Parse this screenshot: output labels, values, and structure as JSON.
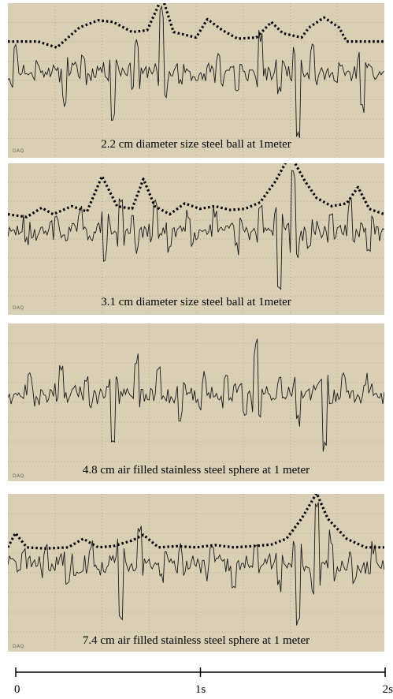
{
  "panels": [
    {
      "caption": "2.2 cm diameter size steel ball at 1meter",
      "daq_label": "DAQ",
      "has_envelope": true,
      "seed": 11,
      "spikes": [
        [
          0.02,
          0.38
        ],
        [
          0.08,
          0.22
        ],
        [
          0.15,
          -0.45
        ],
        [
          0.2,
          0.3
        ],
        [
          0.28,
          -0.75
        ],
        [
          0.34,
          0.55
        ],
        [
          0.41,
          1.1
        ],
        [
          0.46,
          -0.3
        ],
        [
          0.52,
          -0.2
        ],
        [
          0.56,
          0.35
        ],
        [
          0.61,
          -0.35
        ],
        [
          0.67,
          0.6
        ],
        [
          0.72,
          -0.3
        ],
        [
          0.77,
          -1.0
        ],
        [
          0.81,
          0.4
        ],
        [
          0.87,
          -0.25
        ],
        [
          0.94,
          -0.75
        ]
      ],
      "envelope": [
        [
          0.0,
          0.55
        ],
        [
          0.08,
          0.55
        ],
        [
          0.13,
          0.44
        ],
        [
          0.19,
          0.8
        ],
        [
          0.24,
          0.93
        ],
        [
          0.28,
          0.9
        ],
        [
          0.33,
          0.72
        ],
        [
          0.37,
          0.75
        ],
        [
          0.41,
          1.35
        ],
        [
          0.44,
          0.72
        ],
        [
          0.5,
          0.62
        ],
        [
          0.53,
          0.95
        ],
        [
          0.57,
          0.75
        ],
        [
          0.61,
          0.6
        ],
        [
          0.66,
          0.62
        ],
        [
          0.7,
          0.9
        ],
        [
          0.73,
          0.7
        ],
        [
          0.78,
          0.62
        ],
        [
          0.8,
          0.8
        ],
        [
          0.84,
          0.98
        ],
        [
          0.88,
          0.8
        ],
        [
          0.9,
          0.55
        ],
        [
          1.0,
          0.55
        ]
      ]
    },
    {
      "caption": "3.1 cm diameter size steel ball at 1meter",
      "daq_label": "DAQ",
      "has_envelope": true,
      "seed": 29,
      "spikes": [
        [
          0.05,
          -0.3
        ],
        [
          0.13,
          0.25
        ],
        [
          0.19,
          0.3
        ],
        [
          0.26,
          -0.5
        ],
        [
          0.3,
          0.55
        ],
        [
          0.34,
          -0.3
        ],
        [
          0.39,
          0.4
        ],
        [
          0.43,
          -0.35
        ],
        [
          0.48,
          0.35
        ],
        [
          0.55,
          0.3
        ],
        [
          0.61,
          -0.4
        ],
        [
          0.67,
          0.35
        ],
        [
          0.72,
          -1.05
        ],
        [
          0.76,
          1.05
        ],
        [
          0.8,
          -0.35
        ],
        [
          0.86,
          0.3
        ],
        [
          0.91,
          0.5
        ],
        [
          0.96,
          -0.35
        ]
      ],
      "envelope": [
        [
          0.0,
          0.3
        ],
        [
          0.05,
          0.25
        ],
        [
          0.09,
          0.42
        ],
        [
          0.12,
          0.3
        ],
        [
          0.17,
          0.45
        ],
        [
          0.21,
          0.35
        ],
        [
          0.25,
          1.0
        ],
        [
          0.29,
          0.45
        ],
        [
          0.33,
          0.4
        ],
        [
          0.36,
          0.95
        ],
        [
          0.39,
          0.45
        ],
        [
          0.43,
          0.3
        ],
        [
          0.47,
          0.5
        ],
        [
          0.51,
          0.4
        ],
        [
          0.55,
          0.45
        ],
        [
          0.59,
          0.38
        ],
        [
          0.63,
          0.4
        ],
        [
          0.67,
          0.52
        ],
        [
          0.71,
          0.9
        ],
        [
          0.75,
          1.4
        ],
        [
          0.79,
          0.9
        ],
        [
          0.82,
          0.6
        ],
        [
          0.86,
          0.45
        ],
        [
          0.9,
          0.5
        ],
        [
          0.93,
          0.8
        ],
        [
          0.96,
          0.4
        ],
        [
          1.0,
          0.3
        ]
      ]
    },
    {
      "caption": "4.8 cm air filled stainless steel sphere at 1 meter",
      "daq_label": "DAQ",
      "has_envelope": false,
      "seed": 47,
      "spikes": [
        [
          0.06,
          0.25
        ],
        [
          0.14,
          0.38
        ],
        [
          0.21,
          0.3
        ],
        [
          0.28,
          -0.85
        ],
        [
          0.34,
          0.55
        ],
        [
          0.4,
          0.35
        ],
        [
          0.46,
          -0.45
        ],
        [
          0.52,
          0.3
        ],
        [
          0.58,
          0.45
        ],
        [
          0.63,
          -0.35
        ],
        [
          0.66,
          0.85
        ],
        [
          0.72,
          0.3
        ],
        [
          0.77,
          -0.5
        ],
        [
          0.84,
          -0.9
        ],
        [
          0.89,
          0.3
        ],
        [
          0.95,
          0.25
        ]
      ],
      "envelope": []
    },
    {
      "caption": "7.4 cm air filled stainless steel sphere at 1 meter",
      "daq_label": "DAQ",
      "has_envelope": true,
      "seed": 83,
      "spikes": [
        [
          0.04,
          0.3
        ],
        [
          0.1,
          0.28
        ],
        [
          0.16,
          -0.35
        ],
        [
          0.22,
          0.3
        ],
        [
          0.3,
          -0.95
        ],
        [
          0.35,
          0.55
        ],
        [
          0.41,
          -0.3
        ],
        [
          0.46,
          0.35
        ],
        [
          0.54,
          0.3
        ],
        [
          0.6,
          -0.35
        ],
        [
          0.66,
          0.3
        ],
        [
          0.72,
          -0.35
        ],
        [
          0.77,
          -1.05
        ],
        [
          0.82,
          1.05
        ],
        [
          0.86,
          0.45
        ],
        [
          0.92,
          -0.3
        ],
        [
          0.97,
          0.25
        ]
      ],
      "envelope": [
        [
          0.0,
          0.3
        ],
        [
          0.02,
          0.55
        ],
        [
          0.05,
          0.3
        ],
        [
          0.1,
          0.28
        ],
        [
          0.16,
          0.3
        ],
        [
          0.2,
          0.45
        ],
        [
          0.24,
          0.3
        ],
        [
          0.28,
          0.32
        ],
        [
          0.33,
          0.42
        ],
        [
          0.36,
          0.52
        ],
        [
          0.4,
          0.3
        ],
        [
          0.45,
          0.32
        ],
        [
          0.5,
          0.3
        ],
        [
          0.55,
          0.34
        ],
        [
          0.6,
          0.3
        ],
        [
          0.65,
          0.32
        ],
        [
          0.7,
          0.35
        ],
        [
          0.74,
          0.45
        ],
        [
          0.78,
          0.8
        ],
        [
          0.82,
          1.25
        ],
        [
          0.85,
          0.8
        ],
        [
          0.9,
          0.45
        ],
        [
          0.95,
          0.3
        ],
        [
          1.0,
          0.3
        ]
      ]
    }
  ],
  "time_axis": {
    "min": 0,
    "max": 2,
    "ticks": [
      {
        "value": 0,
        "label": "0"
      },
      {
        "value": 1,
        "label": "1s"
      },
      {
        "value": 2,
        "label": "2s"
      }
    ]
  },
  "colors": {
    "panel_background": "#d8cfb4",
    "grid_line": "#b3aa90",
    "trace": "#1a1a1a",
    "envelope": "#000000"
  },
  "chart_data": {
    "type": "line",
    "title": "",
    "xlabel": "",
    "ylabel": "",
    "x_range": [
      0,
      2
    ],
    "x_tick_labels": [
      "0",
      "1s",
      "2s"
    ],
    "grid": true,
    "series": [
      {
        "name": "2.2 cm diameter size steel ball at 1meter"
      },
      {
        "name": "3.1 cm diameter size steel ball at 1meter"
      },
      {
        "name": "4.8 cm air filled stainless steel sphere at 1 meter"
      },
      {
        "name": "7.4 cm air filled stainless steel sphere at 1 meter"
      }
    ]
  }
}
